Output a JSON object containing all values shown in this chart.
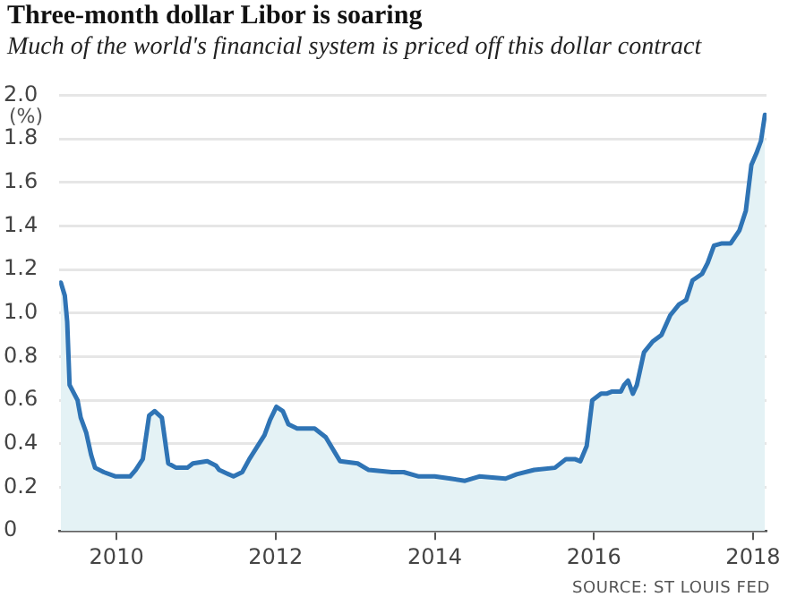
{
  "chart_data": {
    "type": "area",
    "title": "Three-month dollar Libor is soaring",
    "subtitle": "Much of the world's financial system is priced off this dollar contract",
    "ylabel": "(%)",
    "annotations": [
      "SOURCE: ST LOUIS FED"
    ],
    "x": [
      2009.3,
      2009.35,
      2009.38,
      2009.41,
      2009.51,
      2009.55,
      2009.62,
      2009.68,
      2009.73,
      2009.84,
      2009.99,
      2010.17,
      2010.24,
      2010.33,
      2010.41,
      2010.48,
      2010.57,
      2010.65,
      2010.75,
      2010.89,
      2010.96,
      2011.14,
      2011.25,
      2011.29,
      2011.47,
      2011.58,
      2011.67,
      2011.86,
      2011.93,
      2012.01,
      2012.09,
      2012.16,
      2012.27,
      2012.49,
      2012.63,
      2012.81,
      2013.03,
      2013.17,
      2013.46,
      2013.61,
      2013.8,
      2014.0,
      2014.2,
      2014.38,
      2014.56,
      2014.89,
      2015.03,
      2015.25,
      2015.51,
      2015.65,
      2015.76,
      2015.83,
      2015.91,
      2015.98,
      2016.09,
      2016.16,
      2016.23,
      2016.34,
      2016.38,
      2016.43,
      2016.49,
      2016.54,
      2016.63,
      2016.74,
      2016.85,
      2016.96,
      2017.07,
      2017.16,
      2017.24,
      2017.36,
      2017.43,
      2017.51,
      2017.61,
      2017.72,
      2017.83,
      2017.91,
      2017.98,
      2018.05,
      2018.1,
      2018.15
    ],
    "series": [
      {
        "color": "#2f74b5",
        "values": [
          1.14,
          1.08,
          0.96,
          0.67,
          0.6,
          0.52,
          0.45,
          0.35,
          0.29,
          0.27,
          0.25,
          0.25,
          0.28,
          0.33,
          0.53,
          0.55,
          0.52,
          0.31,
          0.29,
          0.29,
          0.31,
          0.32,
          0.3,
          0.28,
          0.25,
          0.27,
          0.33,
          0.44,
          0.51,
          0.57,
          0.55,
          0.49,
          0.47,
          0.47,
          0.43,
          0.32,
          0.31,
          0.28,
          0.27,
          0.27,
          0.25,
          0.25,
          0.24,
          0.23,
          0.25,
          0.24,
          0.26,
          0.28,
          0.29,
          0.33,
          0.33,
          0.32,
          0.39,
          0.6,
          0.63,
          0.63,
          0.64,
          0.64,
          0.67,
          0.69,
          0.63,
          0.67,
          0.82,
          0.87,
          0.9,
          0.99,
          1.04,
          1.06,
          1.15,
          1.18,
          1.23,
          1.31,
          1.32,
          1.32,
          1.38,
          1.47,
          1.68,
          1.74,
          1.79,
          1.91
        ]
      }
    ],
    "xlim": [
      2009.28,
      2018.17
    ],
    "xticks": [
      2010,
      2012,
      2014,
      2016,
      2018
    ],
    "ylim": [
      0,
      2.0
    ],
    "yticks": [
      0,
      {
        "value": 0.2,
        "label": "0.2"
      },
      {
        "value": 0.4,
        "label": "0.4"
      },
      {
        "value": 0.6,
        "label": "0.6"
      },
      {
        "value": 0.8,
        "label": "0.8"
      },
      {
        "value": 1.0,
        "label": "1.0"
      },
      {
        "value": 1.2,
        "label": "1.2"
      },
      {
        "value": 1.4,
        "label": "1.4"
      },
      {
        "value": 1.6,
        "label": "1.6"
      },
      {
        "value": 1.8,
        "label": "1.8"
      },
      {
        "value": 2.0,
        "label": "2.0"
      }
    ],
    "grid": "y",
    "legend": false,
    "marker": "none",
    "line_style": "solid"
  }
}
